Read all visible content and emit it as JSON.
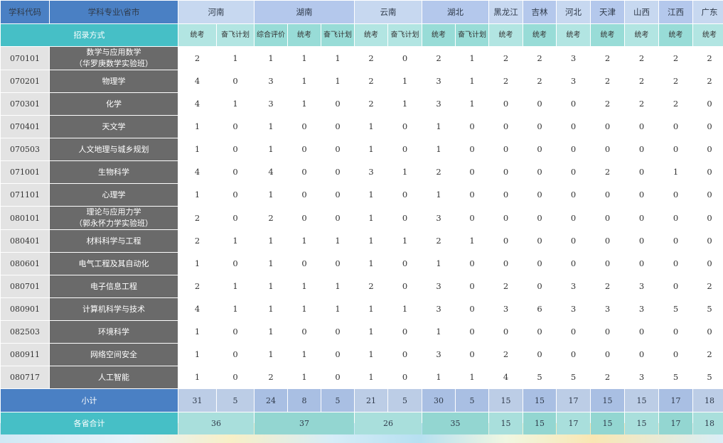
{
  "header": {
    "code_col": "学科代码",
    "major_col": "学科专业\\省市",
    "method_label": "招录方式",
    "provinces": [
      "河南",
      "湖南",
      "云南",
      "湖北",
      "黑龙江",
      "吉林",
      "河北",
      "天津",
      "山西",
      "江西",
      "广东"
    ]
  },
  "methods": [
    "统考",
    "奋飞计划",
    "综合评价",
    "统考",
    "奋飞计划",
    "统考",
    "奋飞计划",
    "统考",
    "奋飞计划",
    "统考",
    "统考",
    "统考",
    "统考",
    "统考",
    "统考",
    "统考"
  ],
  "rows": [
    {
      "code": "070101",
      "name": [
        "数学与应用数学",
        "（华罗庚数学实验班）"
      ],
      "values": [
        "2",
        "1",
        "1",
        "1",
        "1",
        "2",
        "0",
        "2",
        "1",
        "2",
        "2",
        "3",
        "2",
        "2",
        "2",
        "2"
      ]
    },
    {
      "code": "070201",
      "name": [
        "物理学"
      ],
      "values": [
        "4",
        "0",
        "3",
        "1",
        "1",
        "2",
        "1",
        "3",
        "1",
        "2",
        "2",
        "3",
        "2",
        "2",
        "2",
        "2"
      ]
    },
    {
      "code": "070301",
      "name": [
        "化学"
      ],
      "values": [
        "4",
        "1",
        "3",
        "1",
        "0",
        "2",
        "1",
        "3",
        "1",
        "0",
        "0",
        "0",
        "2",
        "2",
        "2",
        "0"
      ]
    },
    {
      "code": "070401",
      "name": [
        "天文学"
      ],
      "values": [
        "1",
        "0",
        "1",
        "0",
        "0",
        "1",
        "0",
        "1",
        "0",
        "0",
        "0",
        "0",
        "0",
        "0",
        "0",
        "0"
      ]
    },
    {
      "code": "070503",
      "name": [
        "人文地理与城乡规划"
      ],
      "values": [
        "1",
        "0",
        "1",
        "0",
        "0",
        "1",
        "0",
        "1",
        "0",
        "0",
        "0",
        "0",
        "0",
        "0",
        "0",
        "0"
      ]
    },
    {
      "code": "071001",
      "name": [
        "生物科学"
      ],
      "values": [
        "4",
        "0",
        "4",
        "0",
        "0",
        "3",
        "1",
        "2",
        "0",
        "0",
        "0",
        "0",
        "2",
        "0",
        "1",
        "0"
      ]
    },
    {
      "code": "071101",
      "name": [
        "心理学"
      ],
      "values": [
        "1",
        "0",
        "1",
        "0",
        "0",
        "1",
        "0",
        "1",
        "0",
        "0",
        "0",
        "0",
        "0",
        "0",
        "0",
        "0"
      ]
    },
    {
      "code": "080101",
      "name": [
        "理论与应用力学",
        "（郭永怀力学实验班）"
      ],
      "values": [
        "2",
        "0",
        "2",
        "0",
        "0",
        "1",
        "0",
        "3",
        "0",
        "0",
        "0",
        "0",
        "0",
        "0",
        "0",
        "0"
      ]
    },
    {
      "code": "080401",
      "name": [
        "材料科学与工程"
      ],
      "values": [
        "2",
        "1",
        "1",
        "1",
        "1",
        "1",
        "1",
        "2",
        "1",
        "0",
        "0",
        "0",
        "0",
        "0",
        "0",
        "0"
      ]
    },
    {
      "code": "080601",
      "name": [
        "电气工程及其自动化"
      ],
      "values": [
        "1",
        "0",
        "1",
        "0",
        "0",
        "1",
        "0",
        "1",
        "0",
        "0",
        "0",
        "0",
        "0",
        "0",
        "0",
        "0"
      ]
    },
    {
      "code": "080701",
      "name": [
        "电子信息工程"
      ],
      "values": [
        "2",
        "1",
        "1",
        "1",
        "1",
        "2",
        "0",
        "3",
        "0",
        "2",
        "0",
        "3",
        "2",
        "3",
        "0",
        "2"
      ]
    },
    {
      "code": "080901",
      "name": [
        "计算机科学与技术"
      ],
      "values": [
        "4",
        "1",
        "1",
        "1",
        "1",
        "1",
        "1",
        "3",
        "0",
        "3",
        "6",
        "3",
        "3",
        "3",
        "5",
        "5"
      ]
    },
    {
      "code": "082503",
      "name": [
        "环境科学"
      ],
      "values": [
        "1",
        "0",
        "1",
        "0",
        "0",
        "1",
        "0",
        "1",
        "0",
        "0",
        "0",
        "0",
        "0",
        "0",
        "0",
        "0"
      ]
    },
    {
      "code": "080911",
      "name": [
        "网络空间安全"
      ],
      "values": [
        "1",
        "0",
        "1",
        "1",
        "0",
        "1",
        "0",
        "3",
        "0",
        "2",
        "0",
        "0",
        "0",
        "0",
        "0",
        "2"
      ]
    },
    {
      "code": "080717",
      "name": [
        "人工智能"
      ],
      "values": [
        "1",
        "0",
        "2",
        "1",
        "0",
        "1",
        "0",
        "1",
        "1",
        "4",
        "5",
        "5",
        "2",
        "3",
        "5",
        "5"
      ]
    }
  ],
  "subtotal": {
    "label": "小计",
    "values": [
      "31",
      "5",
      "24",
      "8",
      "5",
      "21",
      "5",
      "30",
      "5",
      "15",
      "15",
      "17",
      "15",
      "15",
      "17",
      "18"
    ]
  },
  "total": {
    "label": "各省合计",
    "values": [
      "36",
      "37",
      "26",
      "35",
      "15",
      "15",
      "17",
      "15",
      "15",
      "17",
      "18"
    ]
  }
}
